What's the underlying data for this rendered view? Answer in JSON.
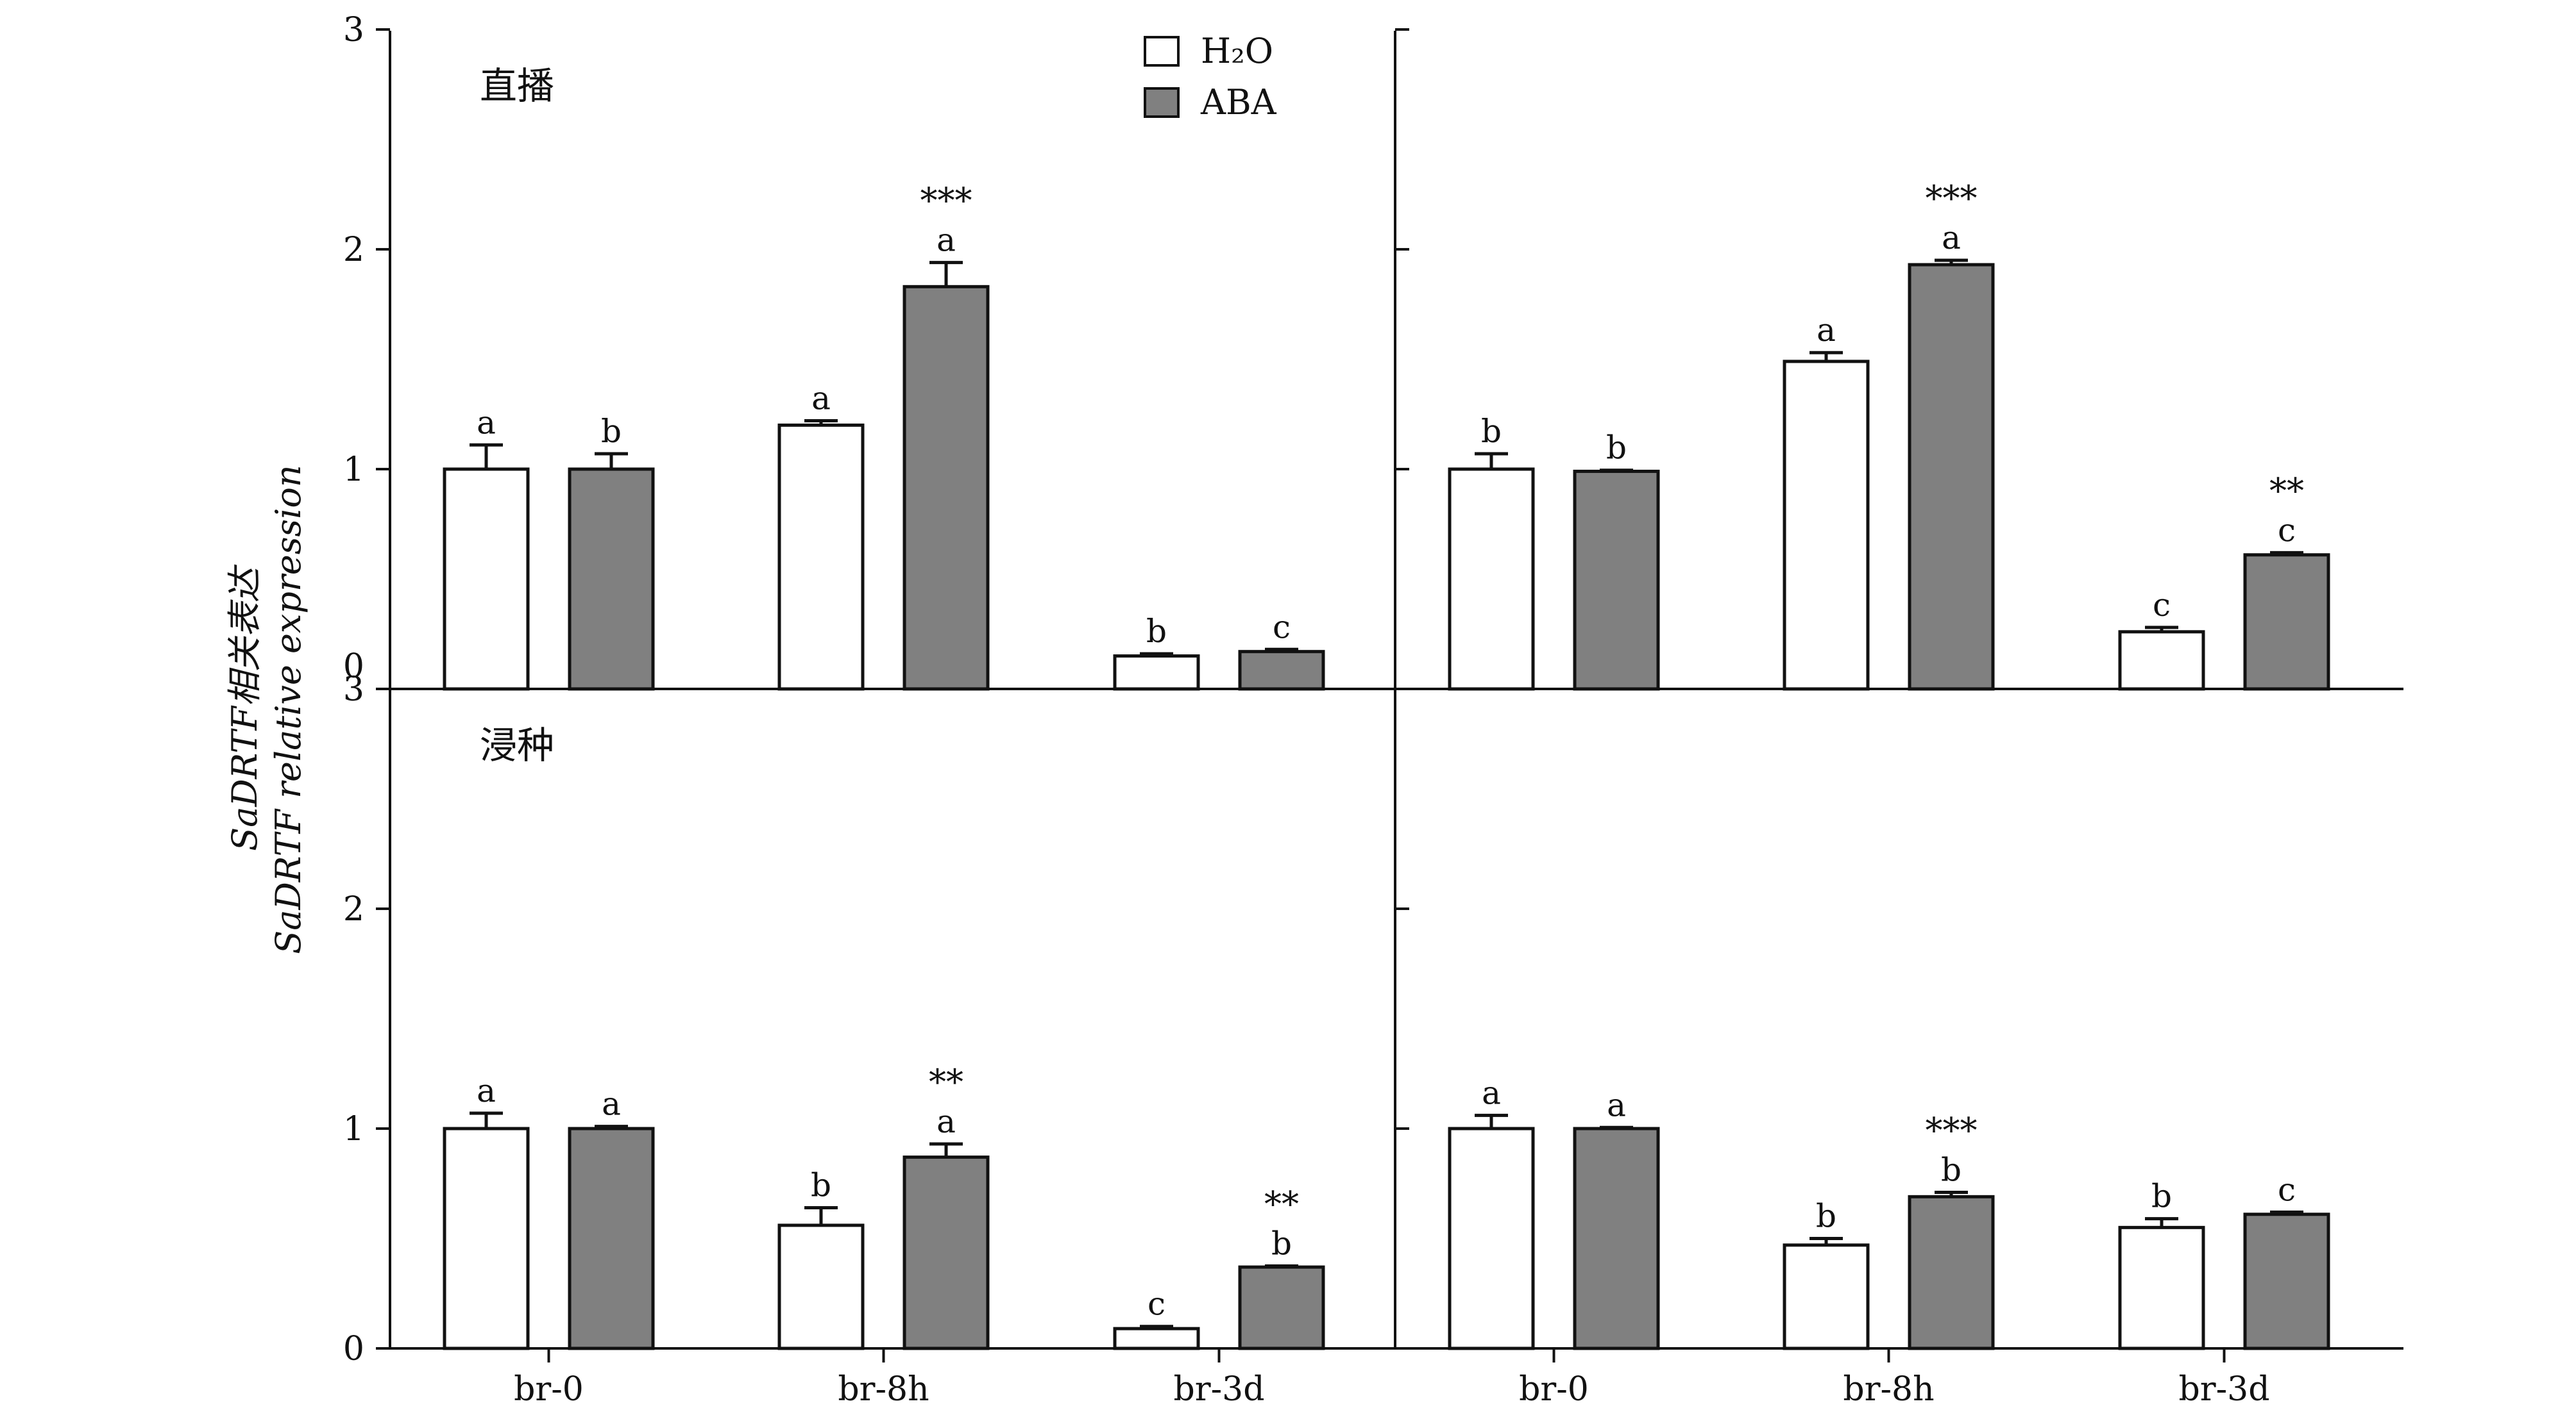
{
  "chart_data": {
    "type": "bar",
    "ylabel_line1": "SaDRTF相关表达",
    "ylabel_line2": "SaDRTF relative expression",
    "ylim": [
      0,
      3
    ],
    "yticks": [
      "0",
      "1",
      "2",
      "3"
    ],
    "categories": [
      "br-0",
      "br-8h",
      "br-3d"
    ],
    "legend": [
      {
        "name": "H₂O",
        "color": "#ffffff"
      },
      {
        "name": "ABA",
        "color": "#808080"
      }
    ],
    "legend_position": "top",
    "panels": [
      {
        "title": "直播",
        "series": [
          {
            "name": "H₂O",
            "values": [
              1.0,
              1.2,
              0.15
            ],
            "errors": [
              0.11,
              0.02,
              0.01
            ],
            "letters": [
              "a",
              "a",
              "b"
            ],
            "stars": [
              "",
              "",
              ""
            ]
          },
          {
            "name": "ABA",
            "values": [
              1.0,
              1.83,
              0.17
            ],
            "errors": [
              0.07,
              0.11,
              0.01
            ],
            "letters": [
              "b",
              "a",
              "c"
            ],
            "stars": [
              "",
              "***",
              ""
            ]
          }
        ]
      },
      {
        "title": "",
        "series": [
          {
            "name": "H₂O",
            "values": [
              1.0,
              1.49,
              0.26
            ],
            "errors": [
              0.07,
              0.04,
              0.02
            ],
            "letters": [
              "b",
              "a",
              "c"
            ],
            "stars": [
              "",
              "",
              ""
            ]
          },
          {
            "name": "ABA",
            "values": [
              0.99,
              1.93,
              0.61
            ],
            "errors": [
              0.005,
              0.02,
              0.01
            ],
            "letters": [
              "b",
              "a",
              "c"
            ],
            "stars": [
              "",
              "***",
              "**"
            ]
          }
        ]
      },
      {
        "title": "浸种",
        "series": [
          {
            "name": "H₂O",
            "values": [
              1.0,
              0.56,
              0.09
            ],
            "errors": [
              0.07,
              0.08,
              0.01
            ],
            "letters": [
              "a",
              "b",
              "c"
            ],
            "stars": [
              "",
              "",
              ""
            ]
          },
          {
            "name": "ABA",
            "values": [
              1.0,
              0.87,
              0.37
            ],
            "errors": [
              0.01,
              0.06,
              0.005
            ],
            "letters": [
              "a",
              "a",
              "b"
            ],
            "stars": [
              "",
              "**",
              "**"
            ]
          }
        ]
      },
      {
        "title": "",
        "series": [
          {
            "name": "H₂O",
            "values": [
              1.0,
              0.47,
              0.55
            ],
            "errors": [
              0.06,
              0.03,
              0.04
            ],
            "letters": [
              "a",
              "b",
              "b"
            ],
            "stars": [
              "",
              "",
              ""
            ]
          },
          {
            "name": "ABA",
            "values": [
              1.0,
              0.69,
              0.61
            ],
            "errors": [
              0.005,
              0.02,
              0.01
            ],
            "letters": [
              "a",
              "b",
              "c"
            ],
            "stars": [
              "",
              "***",
              ""
            ]
          }
        ]
      }
    ]
  }
}
